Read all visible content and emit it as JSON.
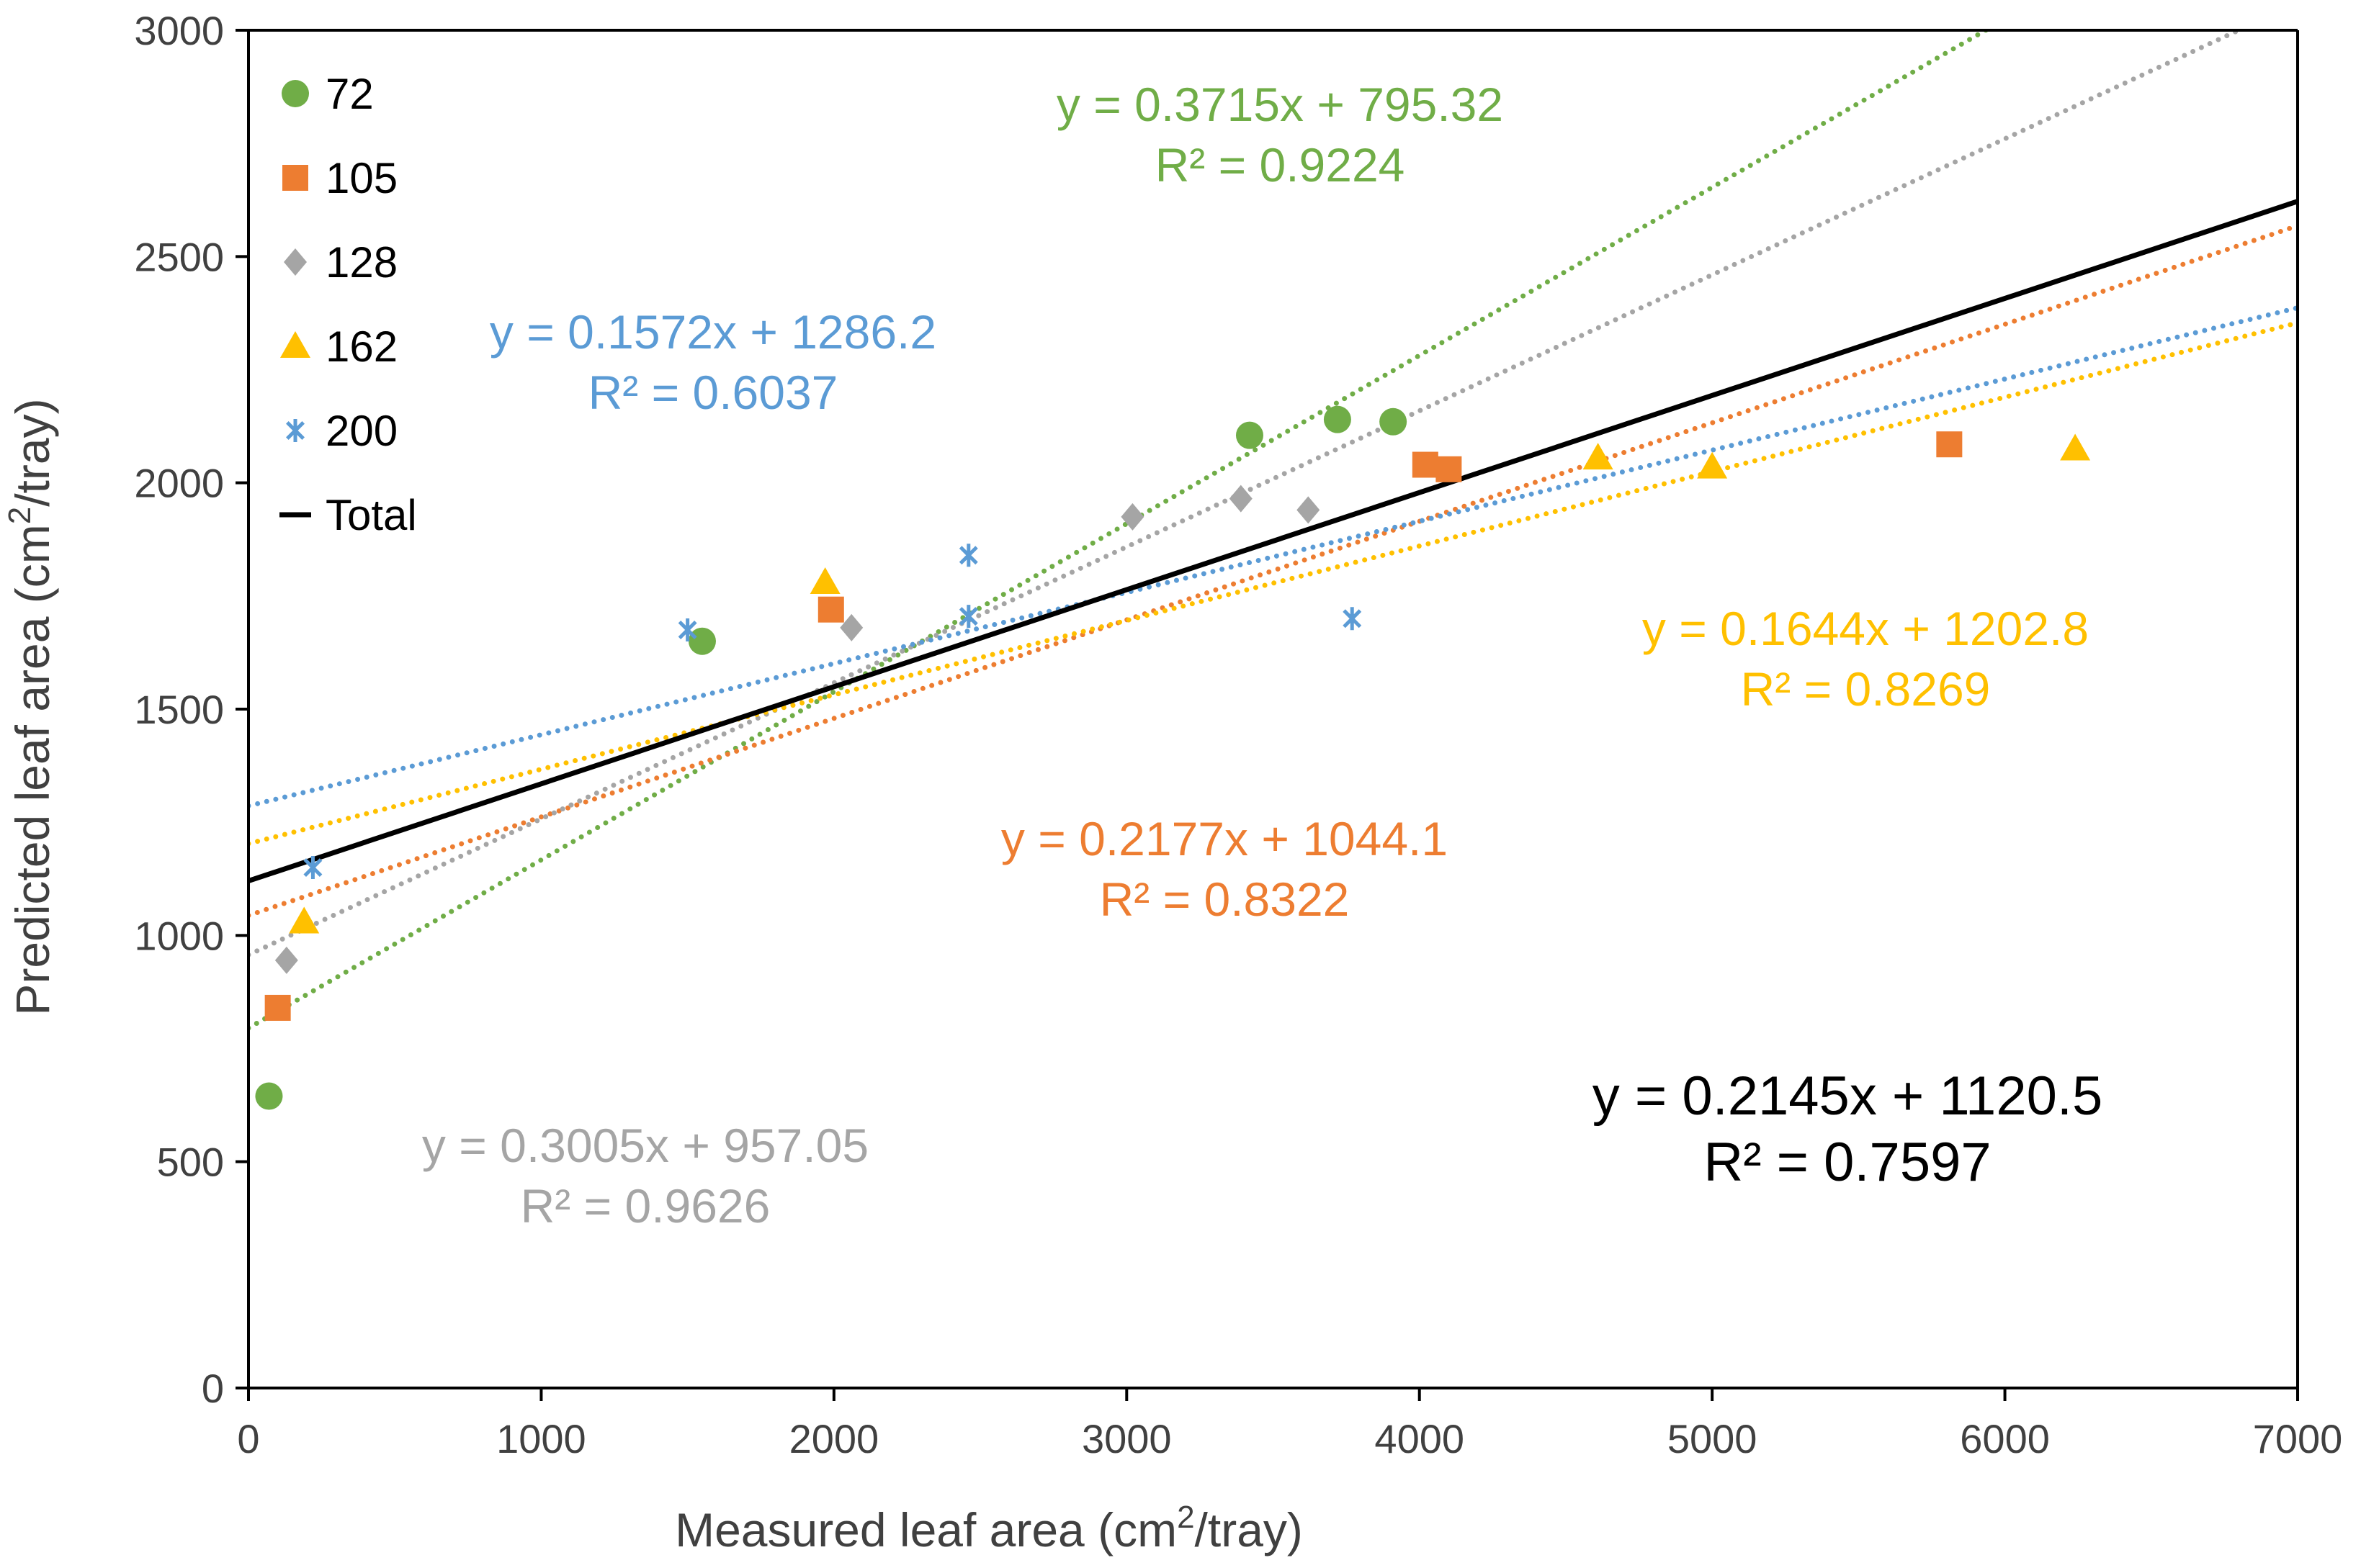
{
  "colors": {
    "s72": "#70AD47",
    "s105": "#ED7D31",
    "s128": "#A5A5A5",
    "s162": "#FFC000",
    "s200": "#5B9BD5",
    "total": "#000000",
    "axis": "#000000",
    "text": "#404040"
  },
  "chart_data": {
    "type": "scatter",
    "xlabel_main": "Measured leaf area (cm",
    "xlabel_sup": "2",
    "xlabel_end": "/tray)",
    "ylabel_main": "Predicted leaf area (cm",
    "ylabel_sup": "2",
    "ylabel_end": "/tray)",
    "xlim": [
      0,
      7000
    ],
    "ylim": [
      0,
      3000
    ],
    "xticks": [
      "0",
      "1000",
      "2000",
      "3000",
      "4000",
      "5000",
      "6000",
      "7000"
    ],
    "yticks": [
      "0",
      "500",
      "1000",
      "1500",
      "2000",
      "2500",
      "3000"
    ],
    "series": [
      {
        "name": "72",
        "marker": "circle",
        "color_key": "s72",
        "points": [
          [
            70,
            645
          ],
          [
            1550,
            1650
          ],
          [
            3420,
            2105
          ],
          [
            3720,
            2140
          ],
          [
            3910,
            2135
          ]
        ],
        "trendline": {
          "slope": 0.3715,
          "intercept": 795.32,
          "x_range": [
            0,
            7000
          ],
          "style": "dotted",
          "eq": "y = 0.3715x + 795.32",
          "r2": "R² = 0.9224"
        }
      },
      {
        "name": "105",
        "marker": "square",
        "color_key": "s105",
        "points": [
          [
            100,
            840
          ],
          [
            1990,
            1720
          ],
          [
            4020,
            2040
          ],
          [
            4100,
            2030
          ],
          [
            5810,
            2085
          ]
        ],
        "trendline": {
          "slope": 0.2177,
          "intercept": 1044.1,
          "x_range": [
            0,
            7000
          ],
          "style": "dotted",
          "eq": "y = 0.2177x + 1044.1",
          "r2": "R² = 0.8322"
        }
      },
      {
        "name": "128",
        "marker": "diamond",
        "color_key": "s128",
        "points": [
          [
            130,
            945
          ],
          [
            2060,
            1680
          ],
          [
            3020,
            1925
          ],
          [
            3390,
            1965
          ],
          [
            3620,
            1940
          ]
        ],
        "trendline": {
          "slope": 0.3005,
          "intercept": 957.05,
          "x_range": [
            0,
            7000
          ],
          "style": "dotted",
          "eq": "y = 0.3005x + 957.05",
          "r2": "R² = 0.9626"
        }
      },
      {
        "name": "162",
        "marker": "triangle",
        "color_key": "s162",
        "points": [
          [
            190,
            1030
          ],
          [
            1970,
            1780
          ],
          [
            4610,
            2055
          ],
          [
            5000,
            2035
          ],
          [
            6240,
            2075
          ]
        ],
        "trendline": {
          "slope": 0.1644,
          "intercept": 1202.8,
          "x_range": [
            0,
            7000
          ],
          "style": "dotted",
          "eq": "y = 0.1644x + 1202.8",
          "r2": "R² = 0.8269"
        }
      },
      {
        "name": "200",
        "marker": "star",
        "color_key": "s200",
        "points": [
          [
            220,
            1150
          ],
          [
            1500,
            1675
          ],
          [
            2460,
            1840
          ],
          [
            2460,
            1705
          ],
          [
            3770,
            1700
          ]
        ],
        "trendline": {
          "slope": 0.1572,
          "intercept": 1286.2,
          "x_range": [
            0,
            7000
          ],
          "style": "dotted",
          "eq": "y = 0.1572x + 1286.2",
          "r2": "R² = 0.6037"
        }
      }
    ],
    "total": {
      "name": "Total",
      "color_key": "total",
      "slope": 0.2145,
      "intercept": 1120.5,
      "x_range": [
        0,
        7000
      ],
      "style": "solid",
      "eq": "y = 0.2145x + 1120.5",
      "r2": "R² = 0.7597"
    },
    "legend": {
      "placement": "top-left",
      "entries": [
        "72",
        "105",
        "128",
        "162",
        "200",
        "Total"
      ]
    }
  }
}
